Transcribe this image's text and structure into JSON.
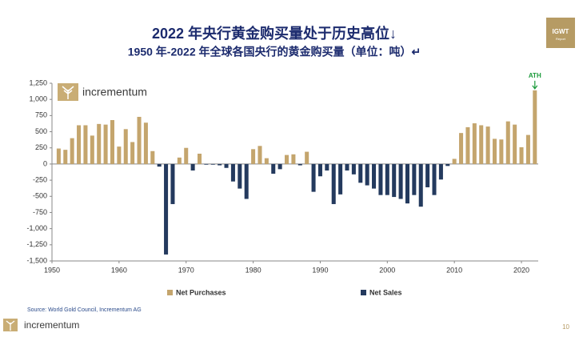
{
  "chart_data": {
    "type": "bar",
    "title": "2022 年央行黄金购买量处于历史高位↓",
    "subtitle": "1950 年-2022 年全球各国央行的黄金购买量（单位：吨）↵",
    "annotation": "ATH",
    "x": [
      1951,
      1952,
      1953,
      1954,
      1955,
      1956,
      1957,
      1958,
      1959,
      1960,
      1961,
      1962,
      1963,
      1964,
      1965,
      1966,
      1967,
      1968,
      1969,
      1970,
      1971,
      1972,
      1973,
      1974,
      1975,
      1976,
      1977,
      1978,
      1979,
      1980,
      1981,
      1982,
      1983,
      1984,
      1985,
      1986,
      1987,
      1988,
      1989,
      1990,
      1991,
      1992,
      1993,
      1994,
      1995,
      1996,
      1997,
      1998,
      1999,
      2000,
      2001,
      2002,
      2003,
      2004,
      2005,
      2006,
      2007,
      2008,
      2009,
      2010,
      2011,
      2012,
      2013,
      2014,
      2015,
      2016,
      2017,
      2018,
      2019,
      2020,
      2021,
      2022
    ],
    "series": [
      {
        "name": "Net Purchases",
        "color": "#c4a56d",
        "values": [
          240,
          220,
          400,
          600,
          600,
          440,
          620,
          610,
          680,
          270,
          540,
          340,
          730,
          640,
          200,
          null,
          null,
          null,
          100,
          250,
          null,
          160,
          null,
          null,
          null,
          null,
          null,
          null,
          null,
          230,
          280,
          90,
          null,
          null,
          140,
          150,
          null,
          190,
          null,
          null,
          null,
          null,
          null,
          null,
          null,
          null,
          null,
          null,
          null,
          null,
          null,
          null,
          null,
          null,
          null,
          null,
          null,
          null,
          null,
          80,
          480,
          570,
          630,
          600,
          580,
          390,
          380,
          660,
          610,
          260,
          450,
          1140
        ]
      },
      {
        "name": "Net Sales",
        "color": "#243a5e",
        "values": [
          null,
          null,
          null,
          null,
          null,
          null,
          null,
          null,
          null,
          null,
          null,
          null,
          null,
          null,
          null,
          -40,
          -1400,
          -620,
          null,
          null,
          -100,
          null,
          -10,
          -10,
          -20,
          -60,
          -270,
          -380,
          -540,
          null,
          null,
          null,
          -150,
          -80,
          null,
          null,
          -20,
          null,
          -430,
          -190,
          -100,
          -620,
          -470,
          -100,
          -160,
          -290,
          -330,
          -380,
          -480,
          -480,
          -510,
          -540,
          -610,
          -480,
          -660,
          -360,
          -480,
          -240,
          -30,
          null,
          null,
          null,
          null,
          null,
          null,
          null,
          null,
          null,
          null,
          null,
          null,
          null
        ]
      }
    ],
    "xlim": [
      1950,
      2022.5
    ],
    "xticks": [
      1950,
      1960,
      1970,
      1980,
      1990,
      2000,
      2010,
      2020
    ],
    "ylim": [
      -1500,
      1250
    ],
    "yticks": [
      {
        "value": 1250,
        "label": "1,250"
      },
      {
        "value": 1000,
        "label": "1,000"
      },
      750,
      500,
      250,
      0,
      -250,
      -500,
      -750,
      {
        "value": -1000,
        "label": "-1,000"
      },
      {
        "value": -1250,
        "label": "-1,250"
      },
      {
        "value": -1500,
        "label": "-1,500"
      }
    ],
    "source": "Source: World Gold Council, Incrementum AG"
  },
  "logo": {
    "chart": "incrementum",
    "footer": "incrementum"
  },
  "badge": {
    "title": "IGWT",
    "subtitle": "Report"
  },
  "page_number": "10"
}
